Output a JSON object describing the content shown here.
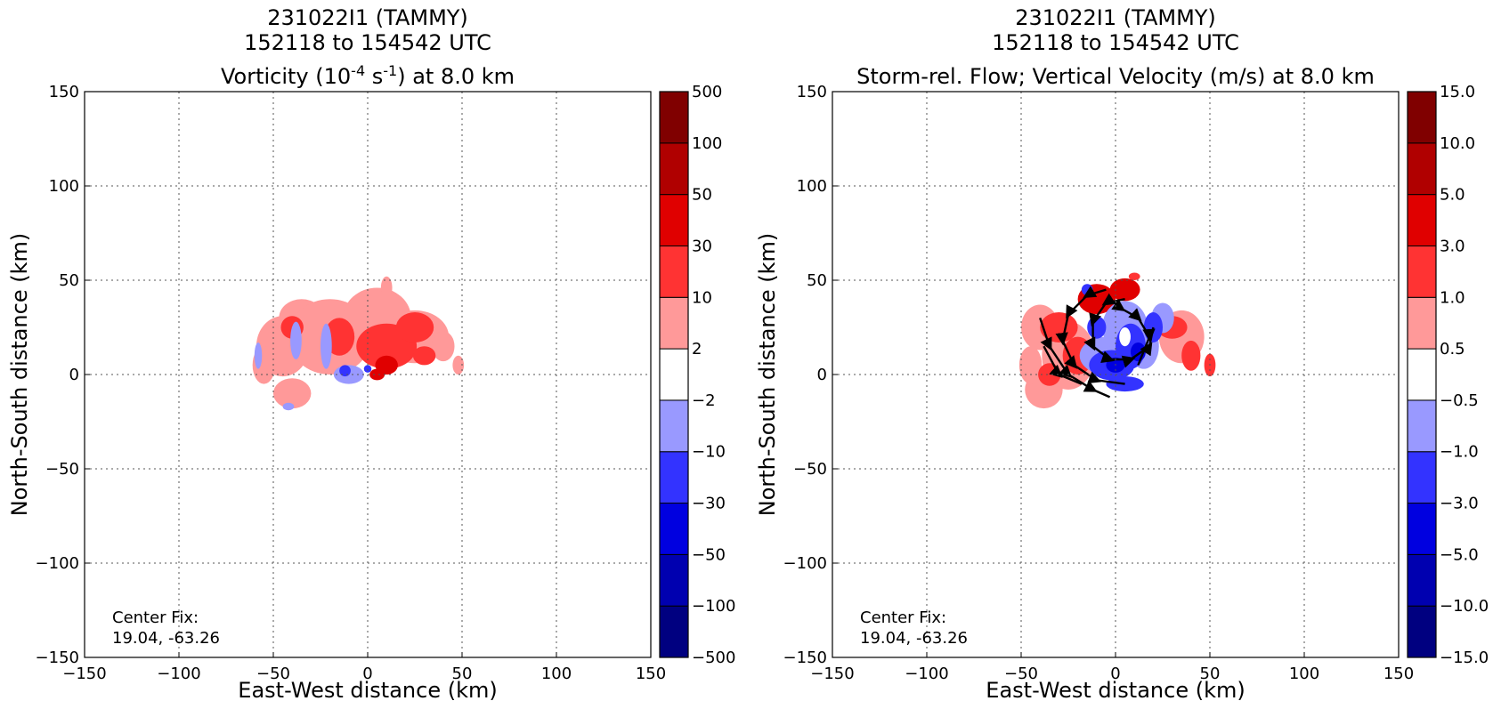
{
  "chart_data": [
    {
      "type": "heatmap",
      "title": [
        "231022I1 (TAMMY)",
        "152118 to 154542 UTC"
      ],
      "subtitle": {
        "prefix": "Vorticity (10",
        "exp1": "-4",
        "mid": " s",
        "exp2": "-1",
        "suffix": ") at 8.0 km"
      },
      "xlabel": "East-West distance (km)",
      "ylabel": "North-South distance (km)",
      "xlim": [
        -150,
        150
      ],
      "ylim": [
        -150,
        150
      ],
      "xticks": [
        -150,
        -100,
        -50,
        0,
        50,
        100,
        150
      ],
      "yticks": [
        -150,
        -100,
        -50,
        0,
        50,
        100,
        150
      ],
      "grid": true,
      "annotation": [
        "Center Fix:",
        "19.04, -63.26"
      ],
      "colorbar": {
        "levels": [
          "−500",
          "−100",
          "−50",
          "−30",
          "−10",
          "−2",
          "2",
          "10",
          "30",
          "50",
          "100",
          "500"
        ],
        "colors": [
          "#000080",
          "#0000b0",
          "#0000e0",
          "#3333ff",
          "#9999ff",
          "#ffffff",
          "#ff9999",
          "#ff3333",
          "#e00000",
          "#b00000",
          "#800000"
        ]
      },
      "regions": [
        {
          "x": -45,
          "y": 15,
          "rx": 14,
          "ry": 16,
          "color": "#ff9999"
        },
        {
          "x": -35,
          "y": 30,
          "rx": 12,
          "ry": 10,
          "color": "#ff9999"
        },
        {
          "x": -20,
          "y": 20,
          "rx": 22,
          "ry": 20,
          "color": "#ff9999"
        },
        {
          "x": 5,
          "y": 30,
          "rx": 18,
          "ry": 16,
          "color": "#ff9999"
        },
        {
          "x": 25,
          "y": 20,
          "rx": 18,
          "ry": 14,
          "color": "#ff9999"
        },
        {
          "x": -40,
          "y": -10,
          "rx": 10,
          "ry": 8,
          "color": "#ff9999"
        },
        {
          "x": -55,
          "y": 5,
          "rx": 6,
          "ry": 10,
          "color": "#ff9999"
        },
        {
          "x": 10,
          "y": 46,
          "rx": 3,
          "ry": 6,
          "color": "#ff9999"
        },
        {
          "x": 48,
          "y": 5,
          "rx": 3,
          "ry": 5,
          "color": "#ff9999"
        },
        {
          "x": 40,
          "y": 15,
          "rx": 6,
          "ry": 8,
          "color": "#ff9999"
        },
        {
          "x": 10,
          "y": 15,
          "rx": 16,
          "ry": 12,
          "color": "#ff3333"
        },
        {
          "x": 25,
          "y": 25,
          "rx": 10,
          "ry": 8,
          "color": "#ff3333"
        },
        {
          "x": -15,
          "y": 20,
          "rx": 8,
          "ry": 10,
          "color": "#ff3333"
        },
        {
          "x": -40,
          "y": 25,
          "rx": 6,
          "ry": 6,
          "color": "#ff3333"
        },
        {
          "x": 30,
          "y": 10,
          "rx": 6,
          "ry": 5,
          "color": "#ff3333"
        },
        {
          "x": 10,
          "y": 5,
          "rx": 6,
          "ry": 5,
          "color": "#e00000"
        },
        {
          "x": 5,
          "y": 0,
          "rx": 4,
          "ry": 3,
          "color": "#e00000"
        },
        {
          "x": -38,
          "y": 18,
          "rx": 3,
          "ry": 10,
          "color": "#9999ff"
        },
        {
          "x": -22,
          "y": 15,
          "rx": 3,
          "ry": 12,
          "color": "#9999ff"
        },
        {
          "x": -58,
          "y": 10,
          "rx": 2,
          "ry": 7,
          "color": "#9999ff"
        },
        {
          "x": -10,
          "y": 0,
          "rx": 8,
          "ry": 5,
          "color": "#9999ff"
        },
        {
          "x": -12,
          "y": 2,
          "rx": 3,
          "ry": 3,
          "color": "#3333ff"
        },
        {
          "x": 0,
          "y": 3,
          "rx": 2,
          "ry": 2,
          "color": "#3333ff"
        },
        {
          "x": -42,
          "y": -17,
          "rx": 3,
          "ry": 2,
          "color": "#9999ff"
        }
      ]
    },
    {
      "type": "heatmap",
      "title": [
        "231022I1 (TAMMY)",
        "152118 to 154542 UTC"
      ],
      "subtitle": {
        "prefix": "Storm-rel. Flow; Vertical Velocity (m/s) at 8.0 km",
        "exp1": "",
        "mid": "",
        "exp2": "",
        "suffix": ""
      },
      "xlabel": "East-West distance (km)",
      "ylabel": "North-South distance (km)",
      "xlim": [
        -150,
        150
      ],
      "ylim": [
        -150,
        150
      ],
      "xticks": [
        -150,
        -100,
        -50,
        0,
        50,
        100,
        150
      ],
      "yticks": [
        -150,
        -100,
        -50,
        0,
        50,
        100,
        150
      ],
      "grid": true,
      "annotation": [
        "Center Fix:",
        "19.04, -63.26"
      ],
      "colorbar": {
        "levels": [
          "−15.0",
          "−10.0",
          "−5.0",
          "−3.0",
          "−1.0",
          "−0.5",
          "0.5",
          "1.0",
          "3.0",
          "5.0",
          "10.0",
          "15.0"
        ],
        "colors": [
          "#000080",
          "#0000b0",
          "#0000e0",
          "#3333ff",
          "#9999ff",
          "#ffffff",
          "#ff9999",
          "#ff3333",
          "#e00000",
          "#b00000",
          "#800000"
        ]
      },
      "regions": [
        {
          "x": -40,
          "y": 25,
          "rx": 10,
          "ry": 12,
          "color": "#ff9999"
        },
        {
          "x": -38,
          "y": -8,
          "rx": 10,
          "ry": 10,
          "color": "#ff9999"
        },
        {
          "x": -25,
          "y": 10,
          "rx": 14,
          "ry": 18,
          "color": "#ff9999"
        },
        {
          "x": 35,
          "y": 20,
          "rx": 12,
          "ry": 14,
          "color": "#ff9999"
        },
        {
          "x": -45,
          "y": 5,
          "rx": 6,
          "ry": 10,
          "color": "#ff9999"
        },
        {
          "x": -30,
          "y": 25,
          "rx": 10,
          "ry": 8,
          "color": "#ff3333"
        },
        {
          "x": -20,
          "y": 10,
          "rx": 8,
          "ry": 10,
          "color": "#ff3333"
        },
        {
          "x": -35,
          "y": 0,
          "rx": 6,
          "ry": 6,
          "color": "#ff3333"
        },
        {
          "x": 30,
          "y": 25,
          "rx": 8,
          "ry": 6,
          "color": "#ff3333"
        },
        {
          "x": 40,
          "y": 10,
          "rx": 5,
          "ry": 8,
          "color": "#ff3333"
        },
        {
          "x": 50,
          "y": 5,
          "rx": 3,
          "ry": 6,
          "color": "#ff3333"
        },
        {
          "x": 10,
          "y": 52,
          "rx": 3,
          "ry": 2,
          "color": "#ff3333"
        },
        {
          "x": -10,
          "y": 40,
          "rx": 10,
          "ry": 8,
          "color": "#e00000"
        },
        {
          "x": 5,
          "y": 45,
          "rx": 8,
          "ry": 6,
          "color": "#e00000"
        },
        {
          "x": 0,
          "y": 20,
          "rx": 6,
          "ry": 10,
          "color": "#e00000"
        },
        {
          "x": -5,
          "y": 10,
          "rx": 14,
          "ry": 10,
          "color": "#9999ff"
        },
        {
          "x": 5,
          "y": 25,
          "rx": 12,
          "ry": 14,
          "color": "#9999ff"
        },
        {
          "x": 15,
          "y": 15,
          "rx": 8,
          "ry": 12,
          "color": "#9999ff"
        },
        {
          "x": 25,
          "y": 30,
          "rx": 6,
          "ry": 8,
          "color": "#9999ff"
        },
        {
          "x": -2,
          "y": 5,
          "rx": 12,
          "ry": 8,
          "color": "#3333ff"
        },
        {
          "x": 8,
          "y": 15,
          "rx": 8,
          "ry": 12,
          "color": "#3333ff"
        },
        {
          "x": 20,
          "y": 25,
          "rx": 5,
          "ry": 8,
          "color": "#3333ff"
        },
        {
          "x": -10,
          "y": 25,
          "rx": 5,
          "ry": 6,
          "color": "#3333ff"
        },
        {
          "x": 5,
          "y": -5,
          "rx": 10,
          "ry": 4,
          "color": "#3333ff"
        },
        {
          "x": 0,
          "y": 5,
          "rx": 5,
          "ry": 4,
          "color": "#0000e0"
        },
        {
          "x": 12,
          "y": 12,
          "rx": 4,
          "ry": 5,
          "color": "#0000e0"
        },
        {
          "x": -15,
          "y": 45,
          "rx": 3,
          "ry": 3,
          "color": "#3333ff"
        },
        {
          "x": 5,
          "y": 20,
          "rx": 3,
          "ry": 5,
          "color": "#ffffff"
        }
      ],
      "streamlines": [
        [
          [
            -5,
            45
          ],
          [
            -15,
            42
          ],
          [
            -25,
            32
          ],
          [
            -28,
            18
          ],
          [
            -22,
            5
          ],
          [
            -10,
            -3
          ],
          [
            5,
            -5
          ]
        ],
        [
          [
            -40,
            30
          ],
          [
            -35,
            15
          ],
          [
            -25,
            0
          ],
          [
            -12,
            -8
          ],
          [
            -3,
            -12
          ]
        ],
        [
          [
            -38,
            15
          ],
          [
            -30,
            0
          ],
          [
            -18,
            -5
          ]
        ],
        [
          [
            5,
            40
          ],
          [
            -5,
            38
          ],
          [
            -12,
            28
          ],
          [
            -12,
            15
          ],
          [
            -3,
            8
          ],
          [
            8,
            8
          ],
          [
            18,
            15
          ],
          [
            20,
            25
          ]
        ],
        [
          [
            -3,
            40
          ],
          [
            3,
            35
          ],
          [
            12,
            30
          ],
          [
            18,
            20
          ],
          [
            12,
            5
          ]
        ]
      ]
    }
  ]
}
